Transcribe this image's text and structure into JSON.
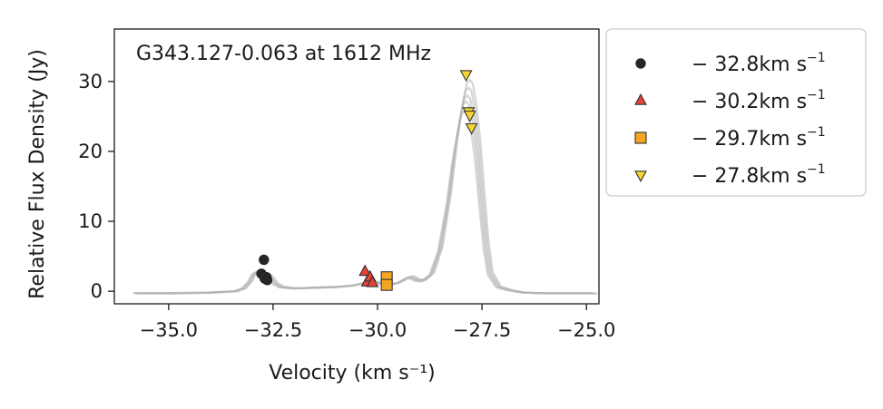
{
  "chart_data": {
    "type": "scatter",
    "title": "G343.127-0.063 at 1612 MHz",
    "xlabel": "Velocity (km s⁻¹)",
    "ylabel": "Relative Flux Density (Jy)",
    "xlim": [
      -36.3,
      -24.7
    ],
    "ylim": [
      -1.8,
      37.5
    ],
    "x_ticks": [
      -35.0,
      -32.5,
      -30.0,
      -27.5,
      -25.0
    ],
    "x_tick_labels": [
      "−35.0",
      "−32.5",
      "−30.0",
      "−27.5",
      "−25.0"
    ],
    "y_ticks": [
      0,
      10,
      20,
      30
    ],
    "y_tick_labels": [
      "0",
      "10",
      "20",
      "30"
    ],
    "grid": false,
    "legend_placement": "outside-right",
    "spectrum": {
      "color": "#b5b5b5",
      "x": [
        -35.8,
        -35.0,
        -34.0,
        -33.4,
        -33.2,
        -33.05,
        -32.95,
        -32.85,
        -32.75,
        -32.65,
        -32.55,
        -32.45,
        -32.3,
        -32.0,
        -31.5,
        -31.0,
        -30.6,
        -30.45,
        -30.3,
        -30.15,
        -30.0,
        -29.85,
        -29.7,
        -29.55,
        -29.4,
        -29.3,
        -29.2,
        -29.05,
        -28.9,
        -28.7,
        -28.5,
        -28.3,
        -28.15,
        -28.0,
        -27.92,
        -27.85,
        -27.78,
        -27.7,
        -27.6,
        -27.5,
        -27.4,
        -27.3,
        -27.1,
        -26.8,
        -26.5,
        -26.0,
        -25.5,
        -24.8
      ],
      "y": [
        -0.3,
        -0.3,
        -0.2,
        0.0,
        0.4,
        1.4,
        2.6,
        2.8,
        2.5,
        2.3,
        1.9,
        1.1,
        0.6,
        0.4,
        0.5,
        0.6,
        0.8,
        1.0,
        1.2,
        1.3,
        1.2,
        1.1,
        1.0,
        1.1,
        1.5,
        1.9,
        2.0,
        1.6,
        1.5,
        2.5,
        6.0,
        13.0,
        20.0,
        25.5,
        27.6,
        28.0,
        27.5,
        25.0,
        20.0,
        13.0,
        6.5,
        2.5,
        0.6,
        0.1,
        -0.2,
        -0.3,
        -0.3,
        -0.3
      ]
    },
    "series": [
      {
        "name": "−32.8km s⁻¹",
        "label_main": "− 32.8km s",
        "label_sup": "−1",
        "marker": "circle",
        "color": "#262626",
        "x": [
          -32.78,
          -32.72,
          -32.7,
          -32.66,
          -32.64
        ],
        "y": [
          2.5,
          4.5,
          1.8,
          2.0,
          1.6
        ]
      },
      {
        "name": "−30.2km s⁻¹",
        "label_main": "− 30.2km s",
        "label_sup": "−1",
        "marker": "triangle-up",
        "color": "#e8413a",
        "x": [
          -30.3,
          -30.25,
          -30.18,
          -30.12
        ],
        "y": [
          2.8,
          1.3,
          2.0,
          1.2
        ]
      },
      {
        "name": "−29.7km s⁻¹",
        "label_main": "− 29.7km s",
        "label_sup": "−1",
        "marker": "square",
        "color": "#f5a623",
        "x": [
          -29.78,
          -29.78
        ],
        "y": [
          2.0,
          0.9
        ]
      },
      {
        "name": "−27.8km s⁻¹",
        "label_main": "− 27.8km s",
        "label_sup": "−1",
        "marker": "triangle-down",
        "color": "#f7d631",
        "x": [
          -27.88,
          -27.82,
          -27.79,
          -27.75
        ],
        "y": [
          31.0,
          25.7,
          25.2,
          23.4
        ]
      }
    ]
  }
}
